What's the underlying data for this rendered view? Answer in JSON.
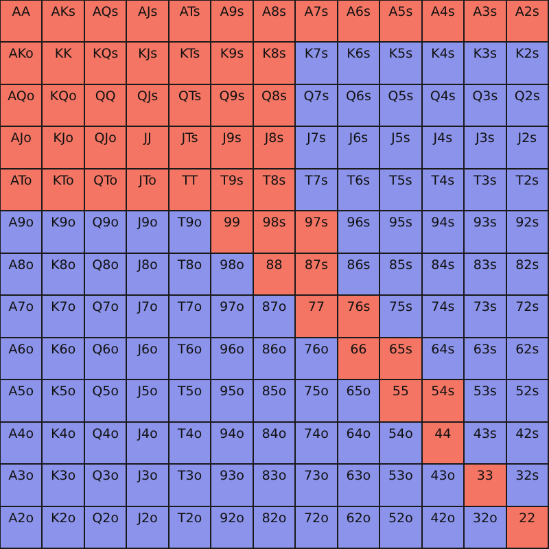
{
  "colors": {
    "selected": "#f47563",
    "unselected": "#8b93ea"
  },
  "rows": [
    [
      {
        "label": "AA",
        "selected": true
      },
      {
        "label": "AKs",
        "selected": true
      },
      {
        "label": "AQs",
        "selected": true
      },
      {
        "label": "AJs",
        "selected": true
      },
      {
        "label": "ATs",
        "selected": true
      },
      {
        "label": "A9s",
        "selected": true
      },
      {
        "label": "A8s",
        "selected": true
      },
      {
        "label": "A7s",
        "selected": true
      },
      {
        "label": "A6s",
        "selected": true
      },
      {
        "label": "A5s",
        "selected": true
      },
      {
        "label": "A4s",
        "selected": true
      },
      {
        "label": "A3s",
        "selected": true
      },
      {
        "label": "A2s",
        "selected": true
      }
    ],
    [
      {
        "label": "AKo",
        "selected": true
      },
      {
        "label": "KK",
        "selected": true
      },
      {
        "label": "KQs",
        "selected": true
      },
      {
        "label": "KJs",
        "selected": true
      },
      {
        "label": "KTs",
        "selected": true
      },
      {
        "label": "K9s",
        "selected": true
      },
      {
        "label": "K8s",
        "selected": true
      },
      {
        "label": "K7s",
        "selected": false
      },
      {
        "label": "K6s",
        "selected": false
      },
      {
        "label": "K5s",
        "selected": false
      },
      {
        "label": "K4s",
        "selected": false
      },
      {
        "label": "K3s",
        "selected": false
      },
      {
        "label": "K2s",
        "selected": false
      }
    ],
    [
      {
        "label": "AQo",
        "selected": true
      },
      {
        "label": "KQo",
        "selected": true
      },
      {
        "label": "QQ",
        "selected": true
      },
      {
        "label": "QJs",
        "selected": true
      },
      {
        "label": "QTs",
        "selected": true
      },
      {
        "label": "Q9s",
        "selected": true
      },
      {
        "label": "Q8s",
        "selected": true
      },
      {
        "label": "Q7s",
        "selected": false
      },
      {
        "label": "Q6s",
        "selected": false
      },
      {
        "label": "Q5s",
        "selected": false
      },
      {
        "label": "Q4s",
        "selected": false
      },
      {
        "label": "Q3s",
        "selected": false
      },
      {
        "label": "Q2s",
        "selected": false
      }
    ],
    [
      {
        "label": "AJo",
        "selected": true
      },
      {
        "label": "KJo",
        "selected": true
      },
      {
        "label": "QJo",
        "selected": true
      },
      {
        "label": "JJ",
        "selected": true
      },
      {
        "label": "JTs",
        "selected": true
      },
      {
        "label": "J9s",
        "selected": true
      },
      {
        "label": "J8s",
        "selected": true
      },
      {
        "label": "J7s",
        "selected": false
      },
      {
        "label": "J6s",
        "selected": false
      },
      {
        "label": "J5s",
        "selected": false
      },
      {
        "label": "J4s",
        "selected": false
      },
      {
        "label": "J3s",
        "selected": false
      },
      {
        "label": "J2s",
        "selected": false
      }
    ],
    [
      {
        "label": "ATo",
        "selected": true
      },
      {
        "label": "KTo",
        "selected": true
      },
      {
        "label": "QTo",
        "selected": true
      },
      {
        "label": "JTo",
        "selected": true
      },
      {
        "label": "TT",
        "selected": true
      },
      {
        "label": "T9s",
        "selected": true
      },
      {
        "label": "T8s",
        "selected": true
      },
      {
        "label": "T7s",
        "selected": false
      },
      {
        "label": "T6s",
        "selected": false
      },
      {
        "label": "T5s",
        "selected": false
      },
      {
        "label": "T4s",
        "selected": false
      },
      {
        "label": "T3s",
        "selected": false
      },
      {
        "label": "T2s",
        "selected": false
      }
    ],
    [
      {
        "label": "A9o",
        "selected": false
      },
      {
        "label": "K9o",
        "selected": false
      },
      {
        "label": "Q9o",
        "selected": false
      },
      {
        "label": "J9o",
        "selected": false
      },
      {
        "label": "T9o",
        "selected": false
      },
      {
        "label": "99",
        "selected": true
      },
      {
        "label": "98s",
        "selected": true
      },
      {
        "label": "97s",
        "selected": true
      },
      {
        "label": "96s",
        "selected": false
      },
      {
        "label": "95s",
        "selected": false
      },
      {
        "label": "94s",
        "selected": false
      },
      {
        "label": "93s",
        "selected": false
      },
      {
        "label": "92s",
        "selected": false
      }
    ],
    [
      {
        "label": "A8o",
        "selected": false
      },
      {
        "label": "K8o",
        "selected": false
      },
      {
        "label": "Q8o",
        "selected": false
      },
      {
        "label": "J8o",
        "selected": false
      },
      {
        "label": "T8o",
        "selected": false
      },
      {
        "label": "98o",
        "selected": false
      },
      {
        "label": "88",
        "selected": true
      },
      {
        "label": "87s",
        "selected": true
      },
      {
        "label": "86s",
        "selected": false
      },
      {
        "label": "85s",
        "selected": false
      },
      {
        "label": "84s",
        "selected": false
      },
      {
        "label": "83s",
        "selected": false
      },
      {
        "label": "82s",
        "selected": false
      }
    ],
    [
      {
        "label": "A7o",
        "selected": false
      },
      {
        "label": "K7o",
        "selected": false
      },
      {
        "label": "Q7o",
        "selected": false
      },
      {
        "label": "J7o",
        "selected": false
      },
      {
        "label": "T7o",
        "selected": false
      },
      {
        "label": "97o",
        "selected": false
      },
      {
        "label": "87o",
        "selected": false
      },
      {
        "label": "77",
        "selected": true
      },
      {
        "label": "76s",
        "selected": true
      },
      {
        "label": "75s",
        "selected": false
      },
      {
        "label": "74s",
        "selected": false
      },
      {
        "label": "73s",
        "selected": false
      },
      {
        "label": "72s",
        "selected": false
      }
    ],
    [
      {
        "label": "A6o",
        "selected": false
      },
      {
        "label": "K6o",
        "selected": false
      },
      {
        "label": "Q6o",
        "selected": false
      },
      {
        "label": "J6o",
        "selected": false
      },
      {
        "label": "T6o",
        "selected": false
      },
      {
        "label": "96o",
        "selected": false
      },
      {
        "label": "86o",
        "selected": false
      },
      {
        "label": "76o",
        "selected": false
      },
      {
        "label": "66",
        "selected": true
      },
      {
        "label": "65s",
        "selected": true
      },
      {
        "label": "64s",
        "selected": false
      },
      {
        "label": "63s",
        "selected": false
      },
      {
        "label": "62s",
        "selected": false
      }
    ],
    [
      {
        "label": "A5o",
        "selected": false
      },
      {
        "label": "K5o",
        "selected": false
      },
      {
        "label": "Q5o",
        "selected": false
      },
      {
        "label": "J5o",
        "selected": false
      },
      {
        "label": "T5o",
        "selected": false
      },
      {
        "label": "95o",
        "selected": false
      },
      {
        "label": "85o",
        "selected": false
      },
      {
        "label": "75o",
        "selected": false
      },
      {
        "label": "65o",
        "selected": false
      },
      {
        "label": "55",
        "selected": true
      },
      {
        "label": "54s",
        "selected": true
      },
      {
        "label": "53s",
        "selected": false
      },
      {
        "label": "52s",
        "selected": false
      }
    ],
    [
      {
        "label": "A4o",
        "selected": false
      },
      {
        "label": "K4o",
        "selected": false
      },
      {
        "label": "Q4o",
        "selected": false
      },
      {
        "label": "J4o",
        "selected": false
      },
      {
        "label": "T4o",
        "selected": false
      },
      {
        "label": "94o",
        "selected": false
      },
      {
        "label": "84o",
        "selected": false
      },
      {
        "label": "74o",
        "selected": false
      },
      {
        "label": "64o",
        "selected": false
      },
      {
        "label": "54o",
        "selected": false
      },
      {
        "label": "44",
        "selected": true
      },
      {
        "label": "43s",
        "selected": false
      },
      {
        "label": "42s",
        "selected": false
      }
    ],
    [
      {
        "label": "A3o",
        "selected": false
      },
      {
        "label": "K3o",
        "selected": false
      },
      {
        "label": "Q3o",
        "selected": false
      },
      {
        "label": "J3o",
        "selected": false
      },
      {
        "label": "T3o",
        "selected": false
      },
      {
        "label": "93o",
        "selected": false
      },
      {
        "label": "83o",
        "selected": false
      },
      {
        "label": "73o",
        "selected": false
      },
      {
        "label": "63o",
        "selected": false
      },
      {
        "label": "53o",
        "selected": false
      },
      {
        "label": "43o",
        "selected": false
      },
      {
        "label": "33",
        "selected": true
      },
      {
        "label": "32s",
        "selected": false
      }
    ],
    [
      {
        "label": "A2o",
        "selected": false
      },
      {
        "label": "K2o",
        "selected": false
      },
      {
        "label": "Q2o",
        "selected": false
      },
      {
        "label": "J2o",
        "selected": false
      },
      {
        "label": "T2o",
        "selected": false
      },
      {
        "label": "92o",
        "selected": false
      },
      {
        "label": "82o",
        "selected": false
      },
      {
        "label": "72o",
        "selected": false
      },
      {
        "label": "62o",
        "selected": false
      },
      {
        "label": "52o",
        "selected": false
      },
      {
        "label": "42o",
        "selected": false
      },
      {
        "label": "32o",
        "selected": false
      },
      {
        "label": "22",
        "selected": true
      }
    ]
  ]
}
